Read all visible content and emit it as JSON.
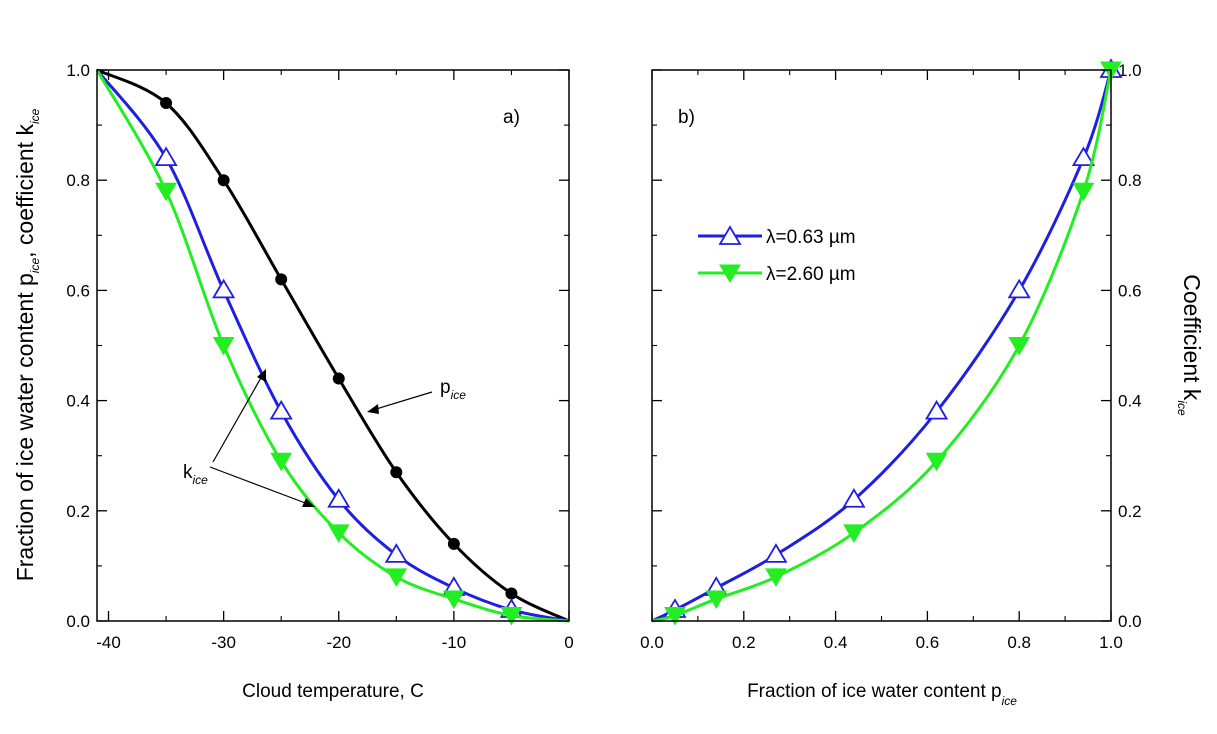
{
  "chart_data": [
    {
      "type": "line",
      "panel": "a)",
      "xlabel": "Cloud temperature, C",
      "ylabel": {
        "main": "Fraction of ice water content  p",
        "sub1": "ice",
        "mid": ", coefficient  k",
        "sub2": "ice"
      },
      "xlim": [
        -41,
        0
      ],
      "ylim": [
        0.0,
        1.0
      ],
      "xticks": [
        -40,
        -30,
        -20,
        -10,
        0
      ],
      "yticks": [
        0.0,
        0.2,
        0.4,
        0.6,
        0.8,
        1.0
      ],
      "grid": false,
      "series": [
        {
          "name": "p_ice",
          "color": "#000000",
          "marker": "filled-circle",
          "x": [
            -41,
            -35,
            -30,
            -25,
            -20,
            -15,
            -10,
            -5,
            0
          ],
          "y": [
            1.0,
            0.94,
            0.8,
            0.62,
            0.44,
            0.27,
            0.14,
            0.05,
            0.0
          ]
        },
        {
          "name": "k_ice, λ=0.63 µm",
          "color": "#1f1fe0",
          "marker": "open-triangle-up",
          "x": [
            -41,
            -35,
            -30,
            -25,
            -20,
            -15,
            -10,
            -5,
            0
          ],
          "y": [
            1.0,
            0.84,
            0.6,
            0.38,
            0.22,
            0.12,
            0.06,
            0.02,
            0.0
          ]
        },
        {
          "name": "k_ice, λ=2.60 µm",
          "color": "#22ee22",
          "marker": "filled-triangle-down",
          "x": [
            -41,
            -35,
            -30,
            -25,
            -20,
            -15,
            -10,
            -5,
            0
          ],
          "y": [
            1.0,
            0.78,
            0.5,
            0.29,
            0.16,
            0.08,
            0.04,
            0.01,
            0.0
          ]
        }
      ],
      "annotations": [
        {
          "text": "p",
          "sub": "ice"
        },
        {
          "text": "k",
          "sub": "ice"
        }
      ]
    },
    {
      "type": "line",
      "panel": "b)",
      "xlabel": {
        "main": "Fraction of ice water content p",
        "sub": "ice"
      },
      "ylabel": {
        "main": "Coefficient k",
        "sub": "ice"
      },
      "xlim": [
        0.0,
        1.0
      ],
      "ylim": [
        0.0,
        1.0
      ],
      "xticks": [
        0.0,
        0.2,
        0.4,
        0.6,
        0.8,
        1.0
      ],
      "yticks": [
        0.0,
        0.2,
        0.4,
        0.6,
        0.8,
        1.0
      ],
      "grid": false,
      "legend_position": "upper-left",
      "series": [
        {
          "name": "λ=0.63 µm",
          "color": "#1f1fe0",
          "marker": "open-triangle-up",
          "x": [
            0.0,
            0.05,
            0.14,
            0.27,
            0.44,
            0.62,
            0.8,
            0.94,
            1.0
          ],
          "y": [
            0.0,
            0.02,
            0.06,
            0.12,
            0.22,
            0.38,
            0.6,
            0.84,
            1.0
          ]
        },
        {
          "name": "λ=2.60 µm",
          "color": "#22ee22",
          "marker": "filled-triangle-down",
          "x": [
            0.0,
            0.05,
            0.14,
            0.27,
            0.44,
            0.62,
            0.8,
            0.94,
            1.0
          ],
          "y": [
            0.0,
            0.01,
            0.04,
            0.08,
            0.16,
            0.29,
            0.5,
            0.78,
            1.0
          ]
        }
      ]
    }
  ]
}
